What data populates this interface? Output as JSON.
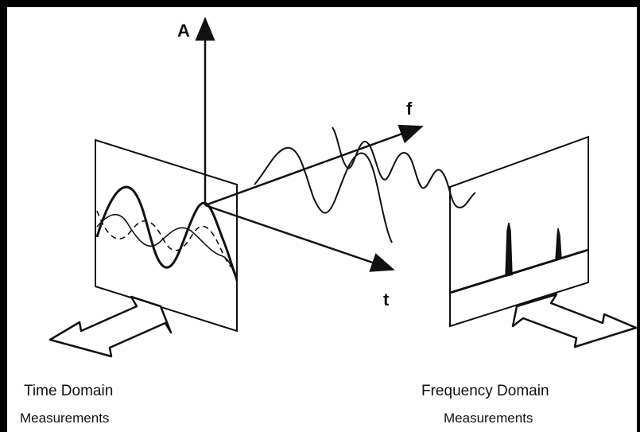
{
  "axes": {
    "amplitude_label": "A",
    "frequency_label": "f",
    "time_label": "t"
  },
  "captions": {
    "time_domain_title": "Time Domain",
    "time_domain_sub": "Measurements",
    "frequency_domain_title": "Frequency Domain",
    "frequency_domain_sub": "Measurements"
  },
  "colors": {
    "ink": "#111111",
    "background": "#fefefe",
    "frame": "#000000"
  }
}
